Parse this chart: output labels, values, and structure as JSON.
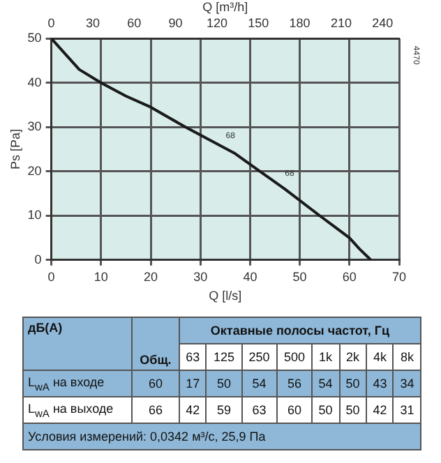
{
  "chart_data": [
    {
      "type": "line",
      "xlabel": "Q [l/s]",
      "ylabel": "Ps [Pa]",
      "x2label": "Q [m³/h]",
      "series": [
        {
          "color": "#1a1a1a",
          "x": [
            0,
            2,
            5.6,
            10,
            15,
            20,
            27,
            32,
            37,
            42,
            47,
            54,
            57,
            60,
            62,
            64.3
          ],
          "values": [
            50,
            47.5,
            43,
            40,
            37,
            34.5,
            30,
            27,
            24,
            20,
            16,
            10,
            7.5,
            5,
            2.5,
            0
          ]
        }
      ],
      "xlim": [
        0,
        70
      ],
      "xticks": [
        0,
        10,
        20,
        30,
        40,
        50,
        60,
        70
      ],
      "ylim": [
        0,
        50
      ],
      "yticks": [
        0,
        10,
        20,
        30,
        40,
        50
      ],
      "x2lim": [
        0,
        252
      ],
      "x2ticks": [
        0,
        30,
        60,
        90,
        120,
        150,
        180,
        210,
        240
      ],
      "grid": true,
      "marker": "none",
      "line_style": "solid",
      "annotations": [
        "68",
        "68",
        "4470"
      ]
    },
    {
      "type": "heatmap",
      "title": "Октавные полосы частот, Гц",
      "ylabel": "дБ(А)",
      "categories": [
        "Общ.",
        "63",
        "125",
        "250",
        "500",
        "1k",
        "2k",
        "4k",
        "8k"
      ],
      "y_categories": [
        "L$_{wA}$ на входе",
        "L$_{wA}$ на выходе"
      ],
      "cells": [
        [
          60,
          17,
          50,
          54,
          56,
          54,
          50,
          43,
          34
        ],
        [
          66,
          42,
          59,
          63,
          60,
          50,
          50,
          42,
          31
        ]
      ],
      "data_labels": true,
      "annotations": [
        "Условия измерений: 0,0342 м³/с, 25,9 Па"
      ]
    }
  ]
}
